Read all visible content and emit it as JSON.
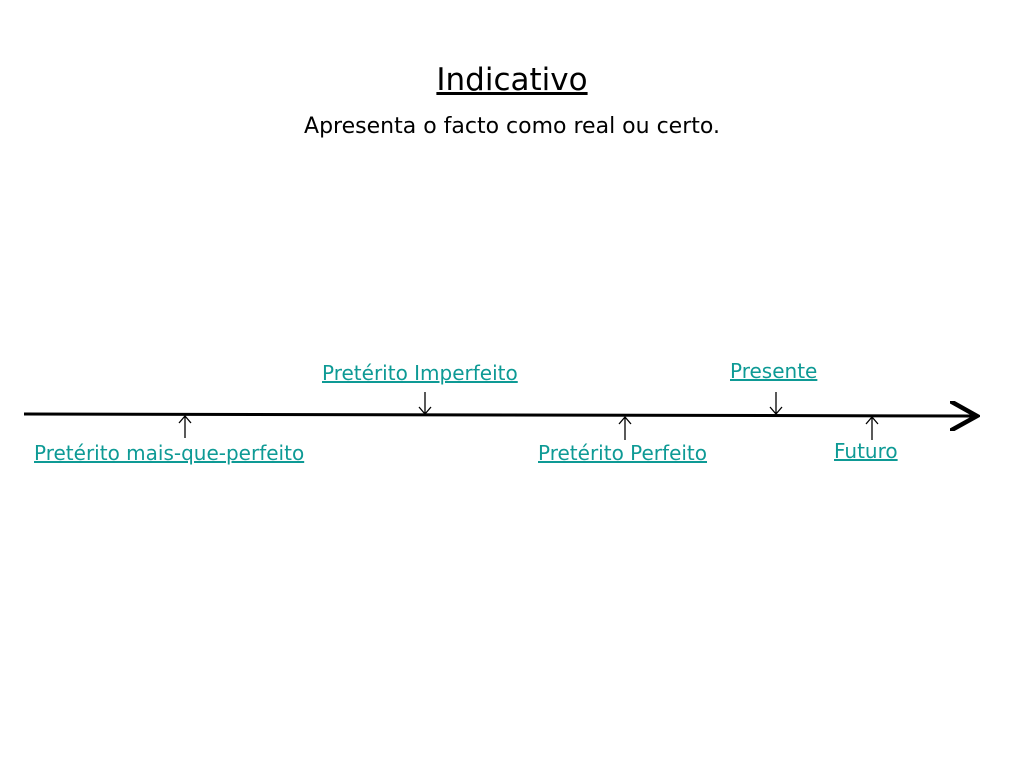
{
  "header": {
    "title": "Indicativo",
    "subtitle": "Apresenta o facto como real ou certo."
  },
  "labels": [
    "Pretérito Imperfeito",
    "Presente",
    "Pretérito mais-que-perfeito",
    "Pretérito Perfeito",
    "Futuro"
  ]
}
